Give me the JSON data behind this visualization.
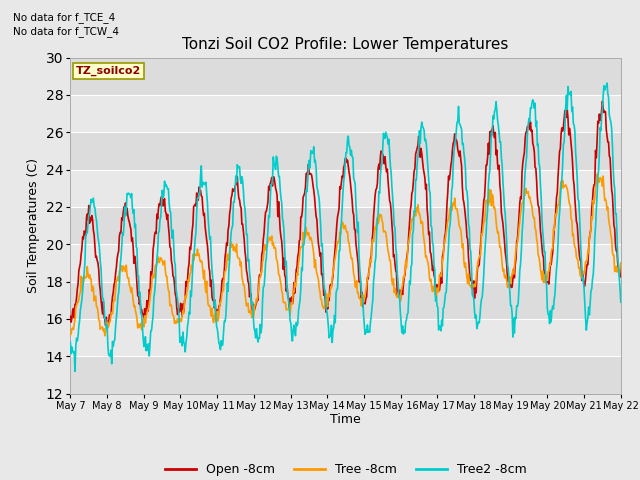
{
  "title": "Tonzi Soil CO2 Profile: Lower Temperatures",
  "xlabel": "Time",
  "ylabel": "Soil Temperatures (C)",
  "ylim": [
    12,
    30
  ],
  "yticks": [
    12,
    14,
    16,
    18,
    20,
    22,
    24,
    26,
    28,
    30
  ],
  "x_tick_labels": [
    "May 7",
    "May 8",
    "May 9",
    "May 10",
    "May 11",
    "May 12",
    "May 13",
    "May 14",
    "May 15",
    "May 16",
    "May 17",
    "May 18",
    "May 19",
    "May 20",
    "May 21",
    "May 22"
  ],
  "note_line1": "No data for f_TCE_4",
  "note_line2": "No data for f_TCW_4",
  "dataset_label": "TZ_soilco2",
  "legend_entries": [
    "Open -8cm",
    "Tree -8cm",
    "Tree2 -8cm"
  ],
  "legend_colors": [
    "#cc0000",
    "#ff9900",
    "#00cccc"
  ],
  "line_colors": [
    "#cc0000",
    "#ff9900",
    "#00cccc"
  ],
  "bg_color": "#e8e8e8",
  "plot_bg": "#f0f0f0",
  "band_colors_even": "#dcdcdc",
  "band_colors_odd": "#e8e8e8",
  "grid_color": "#ffffff"
}
